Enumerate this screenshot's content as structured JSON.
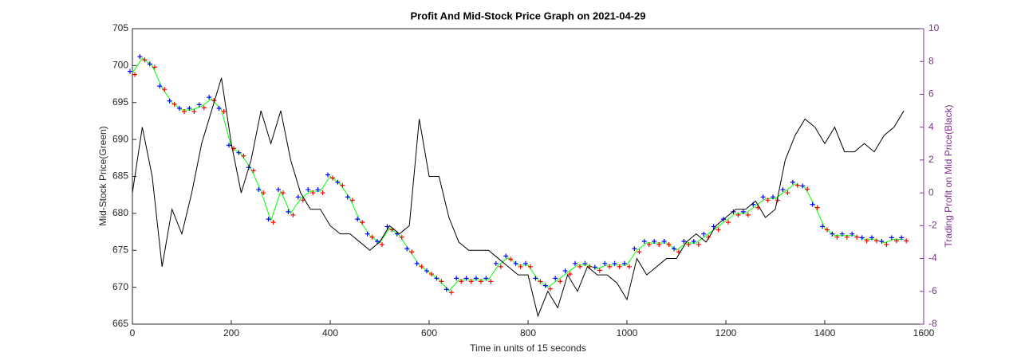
{
  "chart_data": {
    "type": "line",
    "title": "Profit And Mid-Stock Price Graph on 2021-04-29",
    "x_label": "Time in units of 15 seconds",
    "y_label": "Mid-Stock Price(Green)",
    "y2_label": "Trading Profit on Mid Price(Black)",
    "x": [
      0,
      20,
      40,
      60,
      80,
      100,
      120,
      140,
      160,
      180,
      200,
      220,
      240,
      260,
      280,
      300,
      320,
      340,
      360,
      380,
      400,
      420,
      440,
      460,
      480,
      500,
      520,
      540,
      560,
      580,
      600,
      620,
      640,
      660,
      680,
      700,
      720,
      740,
      760,
      780,
      800,
      820,
      840,
      860,
      880,
      900,
      920,
      940,
      960,
      980,
      1000,
      1020,
      1040,
      1060,
      1080,
      1100,
      1120,
      1140,
      1160,
      1180,
      1200,
      1220,
      1240,
      1260,
      1280,
      1300,
      1320,
      1340,
      1360,
      1380,
      1400,
      1420,
      1440,
      1460,
      1480,
      1500,
      1520,
      1540,
      1560
    ],
    "series": [
      {
        "color": "#00ff00",
        "marker_colors": [
          "#0000ff",
          "#ff0000"
        ],
        "values": [
          699,
          701,
          700,
          697,
          695,
          694,
          694,
          694.5,
          695.5,
          694,
          689,
          688,
          686,
          683,
          679,
          683,
          680,
          682,
          683,
          683,
          685,
          684,
          682,
          679,
          677,
          676,
          678,
          677,
          675,
          673,
          672,
          671,
          669.5,
          671,
          671,
          671,
          671,
          673,
          674,
          673,
          673,
          671,
          670,
          671,
          672,
          673,
          673,
          672.5,
          673,
          673,
          673,
          675,
          676,
          676,
          676,
          675,
          676,
          676,
          677,
          678,
          679,
          680,
          680,
          681,
          682,
          682,
          683,
          684,
          683.5,
          681,
          678,
          677,
          677,
          677,
          676.5,
          676.5,
          676,
          676.5,
          676.5
        ]
      },
      {
        "color": "#000000",
        "axis": "y2",
        "values": [
          0,
          4,
          1,
          -4.5,
          -1,
          -2.5,
          0,
          3,
          5,
          7,
          3,
          0,
          2,
          5,
          3,
          5,
          2,
          0,
          -1,
          -1,
          -2,
          -2.5,
          -2.5,
          -3,
          -3.5,
          -3,
          -2,
          -2.5,
          -2,
          4.5,
          1,
          1,
          -1.5,
          -3,
          -3.5,
          -3.5,
          -3.5,
          -4,
          -4.5,
          -5,
          -5,
          -7.5,
          -6,
          -7,
          -5,
          -6,
          -4.5,
          -5,
          -5,
          -5.5,
          -6.5,
          -4,
          -5,
          -4.5,
          -4,
          -4,
          -3,
          -2.5,
          -3,
          -2,
          -1.5,
          -1,
          -1,
          -0.5,
          -1.5,
          -1,
          2,
          3.5,
          4.5,
          4,
          3,
          4,
          2.5,
          2.5,
          3,
          2.5,
          3.5,
          4,
          5
        ]
      }
    ],
    "xlim": [
      0,
      1600
    ],
    "xticks": [
      0,
      200,
      400,
      600,
      800,
      1000,
      1200,
      1400,
      1600
    ],
    "ylim": [
      665,
      705
    ],
    "yticks": [
      665,
      670,
      675,
      680,
      685,
      690,
      695,
      700,
      705
    ],
    "y2lim": [
      -8,
      10
    ],
    "y2ticks": [
      -8,
      -6,
      -4,
      -2,
      0,
      2,
      4,
      6,
      8,
      10
    ]
  }
}
